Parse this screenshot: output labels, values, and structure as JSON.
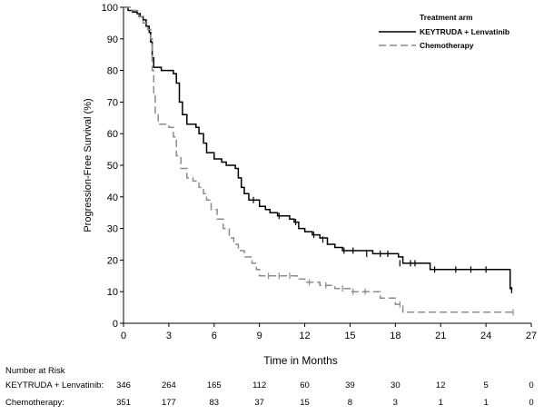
{
  "chart_data": {
    "type": "line",
    "step": true,
    "xlabel": "Time in Months",
    "ylabel": "Progression-Free Survival (%)",
    "xlim": [
      0,
      27
    ],
    "ylim": [
      0,
      100
    ],
    "xticks": [
      0,
      3,
      6,
      9,
      12,
      15,
      18,
      21,
      24,
      27
    ],
    "yticks": [
      0,
      10,
      20,
      30,
      40,
      50,
      60,
      70,
      80,
      90,
      100
    ],
    "grid": false,
    "legend": {
      "title": "Treatment arm",
      "placement": "top-right",
      "entries": [
        "KEYTRUDA + Lenvatinib",
        "Chemotherapy"
      ]
    },
    "series": [
      {
        "name": "KEYTRUDA + Lenvatinib",
        "color": "#000000",
        "line_style": "solid",
        "points": [
          [
            0,
            100
          ],
          [
            0.3,
            99
          ],
          [
            0.6,
            98.5
          ],
          [
            0.9,
            98
          ],
          [
            1.1,
            97
          ],
          [
            1.3,
            96
          ],
          [
            1.5,
            94
          ],
          [
            1.7,
            92
          ],
          [
            1.8,
            89
          ],
          [
            1.9,
            84
          ],
          [
            2.0,
            81
          ],
          [
            2.5,
            80
          ],
          [
            3.3,
            79
          ],
          [
            3.5,
            76
          ],
          [
            3.7,
            70
          ],
          [
            3.9,
            66
          ],
          [
            4.2,
            63
          ],
          [
            4.8,
            62
          ],
          [
            5.0,
            60
          ],
          [
            5.3,
            57
          ],
          [
            5.5,
            54
          ],
          [
            6.0,
            52
          ],
          [
            6.5,
            51
          ],
          [
            6.8,
            50
          ],
          [
            7.4,
            49
          ],
          [
            7.6,
            46
          ],
          [
            7.8,
            43
          ],
          [
            8.0,
            41
          ],
          [
            8.3,
            39
          ],
          [
            9.0,
            37
          ],
          [
            9.4,
            36
          ],
          [
            9.7,
            35
          ],
          [
            10.2,
            34
          ],
          [
            11.0,
            33
          ],
          [
            11.3,
            32
          ],
          [
            11.6,
            30
          ],
          [
            12.0,
            29
          ],
          [
            12.5,
            28
          ],
          [
            13.0,
            27
          ],
          [
            13.5,
            25
          ],
          [
            14.0,
            24
          ],
          [
            14.5,
            23
          ],
          [
            16.5,
            22
          ],
          [
            18.2,
            21
          ],
          [
            18.5,
            19
          ],
          [
            20.3,
            17
          ],
          [
            25.5,
            17
          ],
          [
            25.6,
            11
          ],
          [
            25.7,
            10.5
          ]
        ],
        "censor": [
          [
            8.6,
            39
          ],
          [
            10.3,
            34
          ],
          [
            11.4,
            32
          ],
          [
            12.6,
            28
          ],
          [
            13.2,
            26.5
          ],
          [
            14.6,
            23
          ],
          [
            15.2,
            23
          ],
          [
            16.1,
            22
          ],
          [
            17.0,
            22
          ],
          [
            17.5,
            22
          ],
          [
            18.3,
            19
          ],
          [
            19.0,
            19
          ],
          [
            19.3,
            19
          ],
          [
            20.6,
            17
          ],
          [
            22.0,
            17
          ],
          [
            23.0,
            17
          ],
          [
            24.0,
            17
          ],
          [
            25.7,
            10.5
          ]
        ]
      },
      {
        "name": "Chemotherapy",
        "color": "#8c8c8c",
        "line_style": "dashed",
        "points": [
          [
            0,
            100
          ],
          [
            0.5,
            99
          ],
          [
            1.0,
            97
          ],
          [
            1.3,
            95
          ],
          [
            1.6,
            93
          ],
          [
            1.8,
            90
          ],
          [
            1.9,
            80
          ],
          [
            2.0,
            72
          ],
          [
            2.1,
            66
          ],
          [
            2.3,
            63
          ],
          [
            3.0,
            62
          ],
          [
            3.3,
            59
          ],
          [
            3.5,
            53
          ],
          [
            3.8,
            49
          ],
          [
            4.2,
            46
          ],
          [
            4.6,
            45
          ],
          [
            5.0,
            43
          ],
          [
            5.3,
            41
          ],
          [
            5.5,
            39
          ],
          [
            5.8,
            36
          ],
          [
            6.2,
            33
          ],
          [
            6.6,
            30
          ],
          [
            7.0,
            27
          ],
          [
            7.3,
            25
          ],
          [
            7.6,
            23
          ],
          [
            8.0,
            21
          ],
          [
            8.5,
            19
          ],
          [
            8.8,
            17
          ],
          [
            9.0,
            15
          ],
          [
            10.0,
            15
          ],
          [
            11.5,
            14
          ],
          [
            12.0,
            13
          ],
          [
            13.0,
            12
          ],
          [
            14.0,
            11
          ],
          [
            15.0,
            10
          ],
          [
            17.0,
            8
          ],
          [
            18.0,
            6
          ],
          [
            18.5,
            3.5
          ],
          [
            25.8,
            3.5
          ]
        ],
        "censor": [
          [
            9.6,
            15
          ],
          [
            10.3,
            15
          ],
          [
            11.0,
            15
          ],
          [
            12.3,
            13
          ],
          [
            13.4,
            12
          ],
          [
            14.5,
            11
          ],
          [
            15.2,
            10
          ],
          [
            16.0,
            10
          ],
          [
            18.3,
            6
          ],
          [
            25.8,
            3.5
          ]
        ]
      }
    ],
    "number_at_risk": {
      "title": "Number at Risk",
      "rows": [
        {
          "label": "KEYTRUDA + Lenvatinib:",
          "values": [
            346,
            264,
            165,
            112,
            60,
            39,
            30,
            12,
            5,
            0
          ]
        },
        {
          "label": "Chemotherapy:",
          "values": [
            351,
            177,
            83,
            37,
            15,
            8,
            3,
            1,
            1,
            0
          ]
        }
      ]
    }
  }
}
